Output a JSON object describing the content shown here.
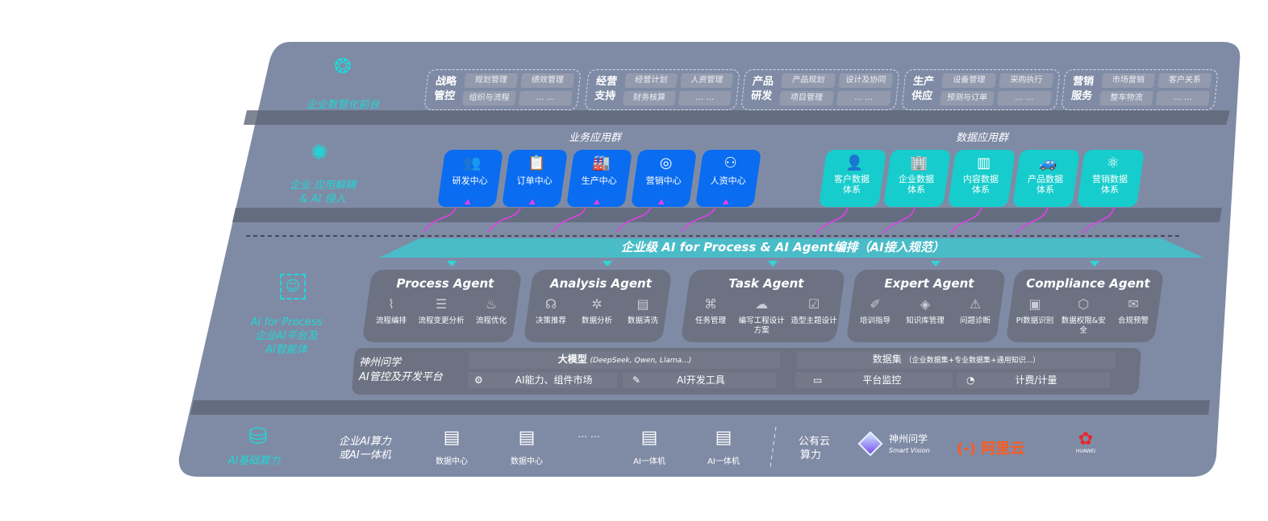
{
  "layers": {
    "front": "企业数智化前台",
    "apps": "企业 应用解耦\n& AI 侵入",
    "ai_line1": "AI for Process",
    "ai_line2": "企业AI平台及",
    "ai_line3": "AI智能体",
    "compute": "AI基础算力"
  },
  "front_groups": [
    {
      "title": "战略管控",
      "items": [
        "规划管理",
        "绩效管理",
        "组织与流程",
        "… …"
      ]
    },
    {
      "title": "经营支持",
      "items": [
        "经营计划",
        "人资管理",
        "财务核算",
        "… …"
      ]
    },
    {
      "title": "产品研发",
      "items": [
        "产品规划",
        "设计及协同",
        "项目管理",
        "… …"
      ]
    },
    {
      "title": "生产供应",
      "items": [
        "设备管理",
        "采购执行",
        "预测与订单",
        "… …"
      ]
    },
    {
      "title": "营销服务",
      "items": [
        "市场营销",
        "客户关系",
        "整车物流",
        "… …"
      ]
    }
  ],
  "business_apps": {
    "title": "业务应用群",
    "items": [
      {
        "label": "研发中心",
        "icon": "team-icon"
      },
      {
        "label": "订单中心",
        "icon": "clipboard-icon"
      },
      {
        "label": "生产中心",
        "icon": "factory-icon"
      },
      {
        "label": "营销中心",
        "icon": "target-icon"
      },
      {
        "label": "人资中心",
        "icon": "people-icon"
      }
    ]
  },
  "data_apps": {
    "title": "数据应用群",
    "items": [
      {
        "label": "客户数据体系",
        "icon": "user-icon"
      },
      {
        "label": "企业数据体系",
        "icon": "building-icon"
      },
      {
        "label": "内容数据体系",
        "icon": "books-icon"
      },
      {
        "label": "产品数据体系",
        "icon": "car-icon"
      },
      {
        "label": "营销数据体系",
        "icon": "atom-icon"
      }
    ]
  },
  "banner": "企业级 AI for Process & AI Agent编排（AI接入规范）",
  "agents": [
    {
      "name": "Process Agent",
      "items": [
        "流程编排",
        "流程变更分析",
        "流程优化"
      ]
    },
    {
      "name": "Analysis Agent",
      "items": [
        "决策推荐",
        "数据分析",
        "数据清洗"
      ]
    },
    {
      "name": "Task Agent",
      "items": [
        "任务管理",
        "编写工程设计方案",
        "造型主题设计"
      ]
    },
    {
      "name": "Expert Agent",
      "items": [
        "培训指导",
        "知识库管理",
        "问题诊断"
      ]
    },
    {
      "name": "Compliance Agent",
      "items": [
        "PI数据识别",
        "数据权限&安全",
        "合规预警"
      ]
    }
  ],
  "platform": {
    "title_line1": "神州问学",
    "title_line2": "AI管控及开发平台",
    "model": "大模型",
    "model_note": "(DeepSeek, Qwen, Llama...)",
    "dataset": "数据集",
    "dataset_note": "（企业数据集+专业数据集+通用知识...）",
    "tools": [
      "AI能力、组件市场",
      "AI开发工具",
      "平台监控",
      "计费/计量"
    ]
  },
  "compute": {
    "private_line1": "企业AI算力",
    "private_line2": "或AI一体机",
    "items": [
      "数据中心",
      "数据中心",
      "… …",
      "AI一体机",
      "AI一体机"
    ],
    "public_line1": "公有云",
    "public_line2": "算力",
    "vendors": [
      "神州问学",
      "Smart Vision",
      "阿里云",
      "HUAWEI"
    ]
  },
  "colors": {
    "panel": "#7f8ba5",
    "teal": "#22d6d6",
    "blue": "#0a6cf0",
    "card_teal": "#17cccc",
    "agent": "#6c7282",
    "arrow": "#e040e8"
  }
}
